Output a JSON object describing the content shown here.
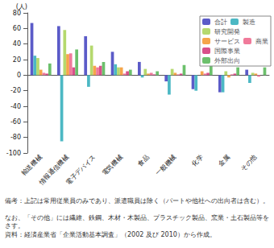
{
  "chart_data": {
    "type": "bar",
    "ylabel": "(人)",
    "categories": [
      "輸送機械",
      "情報通信機械",
      "電子デバイス",
      "電気機械",
      "食品",
      "一般機械",
      "化学",
      "金属",
      "その他"
    ],
    "series": [
      {
        "name": "合計",
        "color": "#5b5bc8",
        "values": [
          67,
          63,
          50,
          30,
          17,
          -8,
          -18,
          -22,
          7
        ]
      },
      {
        "name": "製造",
        "color": "#4cb8c4",
        "values": [
          25,
          -85,
          -15,
          14,
          -3,
          -25,
          -20,
          -22,
          -10
        ]
      },
      {
        "name": "研究開発",
        "color": "#b5d96e",
        "values": [
          22,
          58,
          38,
          10,
          8,
          8,
          0,
          5,
          3
        ]
      },
      {
        "name": "サービス",
        "color": "#f5a54a",
        "values": [
          7,
          27,
          12,
          10,
          2,
          3,
          5,
          -3,
          2
        ]
      },
      {
        "name": "商業",
        "color": "#f07a9a",
        "values": [
          3,
          28,
          10,
          2,
          3,
          1,
          2,
          1,
          -2
        ]
      },
      {
        "name": "国際事業",
        "color": "#d9508a",
        "values": [
          2,
          10,
          12,
          5,
          1,
          2,
          3,
          2,
          0
        ]
      },
      {
        "name": "外部出向",
        "color": "#6cc06c",
        "values": [
          15,
          33,
          17,
          7,
          5,
          13,
          12,
          10,
          10
        ]
      }
    ],
    "ylim": [
      -100,
      80
    ],
    "yticks": [
      -100,
      -80,
      -60,
      -40,
      -20,
      0,
      20,
      40,
      60,
      80
    ],
    "grid": false,
    "legend": "upper right",
    "annotations": [
      "備考：上記は常用従業員のみであり、派遣職員は除く（パートや他社への出向者は含む）。",
      "なお、「その他」には繊維、鉄鋼、木材・木製品、プラスチック製品、窯業・土石製品等をさす。",
      "資料：経済産業省「企業活動基本調査」（2002 及び 2010）から作成。"
    ]
  }
}
